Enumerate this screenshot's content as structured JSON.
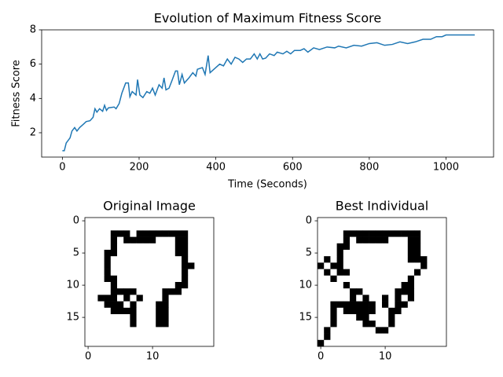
{
  "chart_data": [
    {
      "type": "line",
      "title": "Evolution of Maximum Fitness Score",
      "x_label": "Time (Seconds)",
      "y_label": "Fitness Score",
      "color": "#1f77b4",
      "xlim": [
        -54,
        1124
      ],
      "ylim": [
        0.58,
        8.0
      ],
      "xticks": [
        0,
        200,
        400,
        600,
        800,
        1000
      ],
      "yticks": [
        2,
        4,
        6,
        8
      ],
      "x": [
        0,
        5,
        10,
        20,
        25,
        32,
        38,
        45,
        55,
        62,
        72,
        80,
        85,
        90,
        97,
        105,
        110,
        115,
        120,
        135,
        140,
        148,
        155,
        165,
        172,
        176,
        182,
        192,
        196,
        202,
        210,
        220,
        228,
        235,
        242,
        252,
        260,
        265,
        270,
        278,
        285,
        295,
        300,
        305,
        312,
        318,
        330,
        340,
        348,
        352,
        365,
        372,
        380,
        385,
        395,
        410,
        420,
        430,
        440,
        450,
        460,
        470,
        480,
        490,
        500,
        508,
        515,
        522,
        530,
        540,
        552,
        560,
        575,
        585,
        595,
        605,
        620,
        630,
        640,
        655,
        670,
        690,
        710,
        720,
        740,
        760,
        780,
        800,
        820,
        840,
        860,
        880,
        900,
        920,
        940,
        960,
        975,
        990,
        1000,
        1030,
        1075
      ],
      "values": [
        0.95,
        0.95,
        1.4,
        1.7,
        2.1,
        2.3,
        2.1,
        2.3,
        2.5,
        2.65,
        2.7,
        2.9,
        3.4,
        3.2,
        3.4,
        3.25,
        3.6,
        3.3,
        3.45,
        3.5,
        3.4,
        3.7,
        4.3,
        4.9,
        4.9,
        4.1,
        4.4,
        4.2,
        5.1,
        4.2,
        4.05,
        4.4,
        4.3,
        4.6,
        4.2,
        4.8,
        4.6,
        5.2,
        4.5,
        4.6,
        5.0,
        5.6,
        5.6,
        4.8,
        5.4,
        4.9,
        5.2,
        5.5,
        5.3,
        5.7,
        5.8,
        5.4,
        6.5,
        5.5,
        5.7,
        6.0,
        5.9,
        6.3,
        6.0,
        6.4,
        6.3,
        6.1,
        6.3,
        6.3,
        6.6,
        6.3,
        6.6,
        6.3,
        6.35,
        6.6,
        6.5,
        6.7,
        6.6,
        6.75,
        6.6,
        6.8,
        6.8,
        6.9,
        6.7,
        6.95,
        6.85,
        7.0,
        6.95,
        7.05,
        6.95,
        7.1,
        7.05,
        7.2,
        7.25,
        7.1,
        7.15,
        7.3,
        7.2,
        7.3,
        7.45,
        7.45,
        7.6,
        7.6,
        7.7,
        7.7,
        7.7
      ]
    },
    {
      "type": "image",
      "title": "Original Image",
      "colors": [
        "#ffffff",
        "#000000"
      ],
      "xlim": [
        -0.5,
        19.5
      ],
      "ylim": [
        19.5,
        -0.5
      ],
      "xticks": [
        0,
        10
      ],
      "yticks": [
        0,
        5,
        10,
        15
      ],
      "pixels": [
        [
          0,
          0,
          0,
          0,
          0,
          0,
          0,
          0,
          0,
          0,
          0,
          0,
          0,
          0,
          0,
          0,
          0,
          0,
          0,
          0
        ],
        [
          0,
          0,
          0,
          0,
          0,
          0,
          0,
          0,
          0,
          0,
          0,
          0,
          0,
          0,
          0,
          0,
          0,
          0,
          0,
          0
        ],
        [
          0,
          0,
          0,
          0,
          1,
          1,
          1,
          0,
          1,
          1,
          1,
          1,
          1,
          1,
          1,
          1,
          0,
          0,
          0,
          0
        ],
        [
          0,
          0,
          0,
          0,
          1,
          0,
          1,
          1,
          1,
          1,
          1,
          0,
          0,
          0,
          1,
          1,
          0,
          0,
          0,
          0
        ],
        [
          0,
          0,
          0,
          0,
          1,
          0,
          0,
          0,
          0,
          0,
          0,
          0,
          0,
          0,
          1,
          1,
          0,
          0,
          0,
          0
        ],
        [
          0,
          0,
          0,
          1,
          1,
          0,
          0,
          0,
          0,
          0,
          0,
          0,
          0,
          0,
          1,
          1,
          0,
          0,
          0,
          0
        ],
        [
          0,
          0,
          0,
          1,
          0,
          0,
          0,
          0,
          0,
          0,
          0,
          0,
          0,
          0,
          0,
          1,
          0,
          0,
          0,
          0
        ],
        [
          0,
          0,
          0,
          1,
          0,
          0,
          0,
          0,
          0,
          0,
          0,
          0,
          0,
          0,
          0,
          1,
          1,
          0,
          0,
          0
        ],
        [
          0,
          0,
          0,
          1,
          0,
          0,
          0,
          0,
          0,
          0,
          0,
          0,
          0,
          0,
          0,
          1,
          0,
          0,
          0,
          0
        ],
        [
          0,
          0,
          0,
          1,
          1,
          0,
          0,
          0,
          0,
          0,
          0,
          0,
          0,
          0,
          0,
          1,
          0,
          0,
          0,
          0
        ],
        [
          0,
          0,
          0,
          0,
          1,
          0,
          0,
          0,
          0,
          0,
          0,
          0,
          0,
          0,
          1,
          1,
          0,
          0,
          0,
          0
        ],
        [
          0,
          0,
          0,
          0,
          1,
          1,
          1,
          1,
          0,
          0,
          0,
          0,
          1,
          1,
          1,
          0,
          0,
          0,
          0,
          0
        ],
        [
          0,
          0,
          1,
          1,
          1,
          0,
          1,
          0,
          1,
          0,
          0,
          0,
          1,
          0,
          0,
          0,
          0,
          0,
          0,
          0
        ],
        [
          0,
          0,
          0,
          1,
          1,
          1,
          0,
          1,
          0,
          0,
          0,
          1,
          1,
          0,
          0,
          0,
          0,
          0,
          0,
          0
        ],
        [
          0,
          0,
          0,
          0,
          1,
          1,
          1,
          1,
          0,
          0,
          0,
          1,
          1,
          0,
          0,
          0,
          0,
          0,
          0,
          0
        ],
        [
          0,
          0,
          0,
          0,
          0,
          0,
          0,
          1,
          0,
          0,
          0,
          1,
          1,
          0,
          0,
          0,
          0,
          0,
          0,
          0
        ],
        [
          0,
          0,
          0,
          0,
          0,
          0,
          0,
          1,
          0,
          0,
          0,
          1,
          1,
          0,
          0,
          0,
          0,
          0,
          0,
          0
        ],
        [
          0,
          0,
          0,
          0,
          0,
          0,
          0,
          0,
          0,
          0,
          0,
          0,
          0,
          0,
          0,
          0,
          0,
          0,
          0,
          0
        ],
        [
          0,
          0,
          0,
          0,
          0,
          0,
          0,
          0,
          0,
          0,
          0,
          0,
          0,
          0,
          0,
          0,
          0,
          0,
          0,
          0
        ],
        [
          0,
          0,
          0,
          0,
          0,
          0,
          0,
          0,
          0,
          0,
          0,
          0,
          0,
          0,
          0,
          0,
          0,
          0,
          0,
          0
        ]
      ]
    },
    {
      "type": "image",
      "title": "Best Individual",
      "colors": [
        "#ffffff",
        "#000000"
      ],
      "xlim": [
        -0.5,
        19.5
      ],
      "ylim": [
        19.5,
        -0.5
      ],
      "xticks": [
        0,
        10
      ],
      "yticks": [
        0,
        5,
        10,
        15
      ],
      "pixels": [
        [
          0,
          0,
          0,
          0,
          0,
          0,
          0,
          0,
          0,
          0,
          0,
          0,
          0,
          0,
          0,
          0,
          0,
          0,
          0,
          0
        ],
        [
          0,
          0,
          0,
          0,
          0,
          0,
          0,
          0,
          0,
          0,
          0,
          0,
          0,
          0,
          0,
          0,
          0,
          0,
          0,
          0
        ],
        [
          0,
          0,
          0,
          0,
          1,
          1,
          1,
          1,
          1,
          1,
          1,
          1,
          1,
          1,
          1,
          1,
          0,
          0,
          0,
          0
        ],
        [
          0,
          0,
          0,
          0,
          1,
          0,
          1,
          1,
          1,
          1,
          1,
          0,
          0,
          0,
          1,
          1,
          0,
          0,
          0,
          0
        ],
        [
          0,
          0,
          0,
          1,
          1,
          0,
          0,
          0,
          0,
          0,
          0,
          0,
          0,
          0,
          1,
          1,
          0,
          0,
          0,
          0
        ],
        [
          0,
          0,
          0,
          1,
          0,
          0,
          0,
          0,
          0,
          0,
          0,
          0,
          0,
          0,
          1,
          1,
          0,
          0,
          0,
          0
        ],
        [
          0,
          1,
          0,
          1,
          0,
          0,
          0,
          0,
          0,
          0,
          0,
          0,
          0,
          0,
          1,
          1,
          1,
          0,
          0,
          0
        ],
        [
          1,
          0,
          1,
          1,
          0,
          0,
          0,
          0,
          0,
          0,
          0,
          0,
          0,
          0,
          0,
          0,
          1,
          0,
          0,
          0
        ],
        [
          0,
          1,
          0,
          1,
          1,
          0,
          0,
          0,
          0,
          0,
          0,
          0,
          0,
          0,
          0,
          1,
          0,
          0,
          0,
          0
        ],
        [
          0,
          0,
          1,
          0,
          0,
          0,
          0,
          0,
          0,
          0,
          0,
          0,
          0,
          0,
          1,
          0,
          0,
          0,
          0,
          0
        ],
        [
          0,
          0,
          0,
          0,
          1,
          0,
          0,
          0,
          0,
          0,
          0,
          0,
          0,
          1,
          1,
          0,
          0,
          0,
          0,
          0
        ],
        [
          0,
          0,
          0,
          0,
          0,
          1,
          1,
          0,
          0,
          0,
          0,
          0,
          1,
          1,
          1,
          0,
          0,
          0,
          0,
          0
        ],
        [
          0,
          0,
          0,
          0,
          0,
          1,
          0,
          1,
          0,
          0,
          1,
          0,
          1,
          0,
          1,
          0,
          0,
          0,
          0,
          0
        ],
        [
          0,
          0,
          1,
          1,
          1,
          1,
          1,
          1,
          1,
          0,
          1,
          0,
          1,
          1,
          0,
          0,
          0,
          0,
          0,
          0
        ],
        [
          0,
          0,
          1,
          0,
          1,
          1,
          1,
          1,
          1,
          0,
          0,
          1,
          1,
          0,
          0,
          0,
          0,
          0,
          0,
          0
        ],
        [
          0,
          0,
          1,
          0,
          0,
          0,
          1,
          1,
          0,
          0,
          0,
          1,
          0,
          0,
          0,
          0,
          0,
          0,
          0,
          0
        ],
        [
          0,
          0,
          1,
          0,
          0,
          0,
          0,
          1,
          1,
          0,
          0,
          1,
          0,
          0,
          0,
          0,
          0,
          0,
          0,
          0
        ],
        [
          0,
          1,
          0,
          0,
          0,
          0,
          0,
          0,
          0,
          1,
          1,
          0,
          0,
          0,
          0,
          0,
          0,
          0,
          0,
          0
        ],
        [
          0,
          1,
          0,
          0,
          0,
          0,
          0,
          0,
          0,
          0,
          0,
          0,
          0,
          0,
          0,
          0,
          0,
          0,
          0,
          0
        ],
        [
          1,
          0,
          0,
          0,
          0,
          0,
          0,
          0,
          0,
          0,
          0,
          0,
          0,
          0,
          0,
          0,
          0,
          0,
          0,
          0
        ]
      ]
    }
  ]
}
